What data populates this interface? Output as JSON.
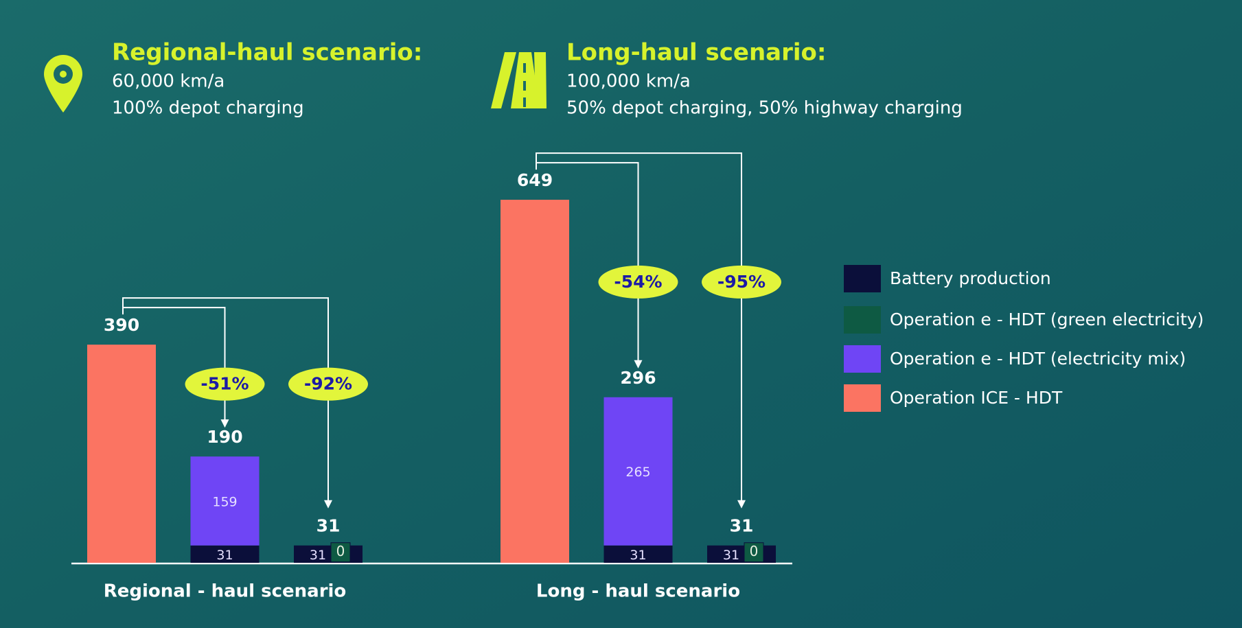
{
  "chart_data": {
    "type": "bar",
    "stacked": true,
    "groups": [
      {
        "title": "Regional-haul scenario:",
        "details": [
          "60,000 km/a",
          "100% depot charging"
        ],
        "label": "Regional - haul scenario"
      },
      {
        "title": "Long-haul scenario:",
        "details": [
          "100,000 km/a",
          "50% depot charging, 50% highway charging"
        ],
        "label": "Long - haul scenario"
      }
    ],
    "series": [
      {
        "name": "Battery production",
        "color": "#0b0f3a",
        "values": [
          null,
          31,
          31,
          null,
          31,
          31
        ]
      },
      {
        "name": "Operation e - HDT (green electricity)",
        "color": "#0e5a43",
        "values": [
          null,
          null,
          0,
          null,
          null,
          0
        ]
      },
      {
        "name": "Operation e - HDT (electricity mix)",
        "color": "#6f45f5",
        "values": [
          null,
          159,
          null,
          null,
          265,
          null
        ]
      },
      {
        "name": "Operation ICE - HDT",
        "color": "#fb7462",
        "values": [
          390,
          null,
          null,
          649,
          null,
          null
        ]
      }
    ],
    "totals": [
      390,
      190,
      31,
      649,
      296,
      31
    ],
    "reductions": [
      "-51%",
      "-92%",
      "-54%",
      "-95%"
    ]
  }
}
